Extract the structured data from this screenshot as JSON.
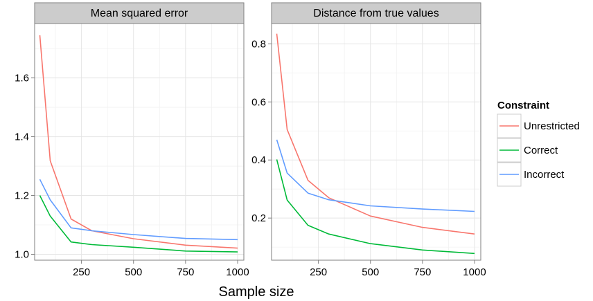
{
  "xlabel": "Sample size",
  "legend": {
    "title": "Constraint",
    "placement": "right",
    "entries": [
      {
        "label": "Unrestricted",
        "color": "#F8766D"
      },
      {
        "label": "Correct",
        "color": "#00BA38"
      },
      {
        "label": "Incorrect",
        "color": "#619CFF"
      }
    ]
  },
  "chart_data": [
    {
      "type": "line",
      "title": "Mean squared error",
      "xlabel": "Sample size",
      "ylabel": "",
      "x": [
        50,
        100,
        200,
        300,
        500,
        750,
        1000
      ],
      "xlim": [
        25,
        1030
      ],
      "ylim": [
        0.98,
        1.785
      ],
      "xticks": [
        250,
        500,
        750,
        1000
      ],
      "yticks": [
        1.0,
        1.2,
        1.4,
        1.6
      ],
      "ytick_labels": [
        "1.0",
        "1.2",
        "1.4",
        "1.6"
      ],
      "grid": true,
      "series": [
        {
          "name": "Unrestricted",
          "color": "#F8766D",
          "values": [
            1.745,
            1.318,
            1.12,
            1.08,
            1.053,
            1.031,
            1.021
          ]
        },
        {
          "name": "Correct",
          "color": "#00BA38",
          "values": [
            1.2,
            1.13,
            1.042,
            1.033,
            1.024,
            1.011,
            1.008
          ]
        },
        {
          "name": "Incorrect",
          "color": "#619CFF",
          "values": [
            1.255,
            1.185,
            1.09,
            1.08,
            1.067,
            1.054,
            1.05
          ]
        }
      ]
    },
    {
      "type": "line",
      "title": "Distance from true values",
      "xlabel": "Sample size",
      "ylabel": "",
      "x": [
        50,
        100,
        200,
        300,
        500,
        750,
        1000
      ],
      "xlim": [
        25,
        1030
      ],
      "ylim": [
        0.055,
        0.87
      ],
      "xticks": [
        250,
        500,
        750,
        1000
      ],
      "yticks": [
        0.2,
        0.4,
        0.6,
        0.8
      ],
      "ytick_labels": [
        "0.2",
        "0.4",
        "0.6",
        "0.8"
      ],
      "grid": true,
      "series": [
        {
          "name": "Unrestricted",
          "color": "#F8766D",
          "values": [
            0.835,
            0.505,
            0.33,
            0.27,
            0.207,
            0.168,
            0.145
          ]
        },
        {
          "name": "Correct",
          "color": "#00BA38",
          "values": [
            0.402,
            0.262,
            0.175,
            0.145,
            0.112,
            0.09,
            0.078
          ]
        },
        {
          "name": "Incorrect",
          "color": "#619CFF",
          "values": [
            0.47,
            0.355,
            0.286,
            0.263,
            0.242,
            0.231,
            0.223
          ]
        }
      ]
    }
  ]
}
